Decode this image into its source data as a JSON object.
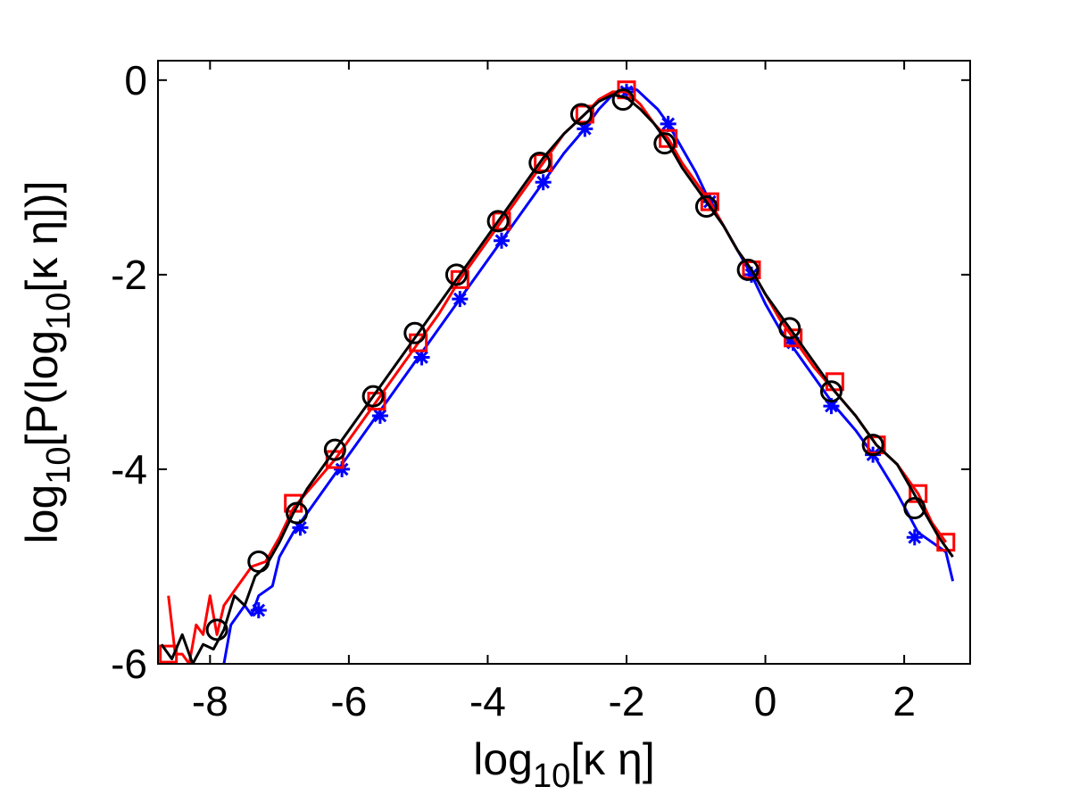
{
  "chart_data": {
    "type": "line",
    "title": "",
    "xlabel": {
      "base": "log",
      "sub": "10",
      "rest": "[κ η]"
    },
    "ylabel": {
      "base": "log",
      "sub1": "10",
      "mid": "[P(log",
      "sub2": "10",
      "rest": "[κ η])]"
    },
    "xlim": [
      -8.75,
      2.95
    ],
    "ylim": [
      -6,
      0.2
    ],
    "xticks": [
      -8,
      -6,
      -4,
      -2,
      0,
      2
    ],
    "xtick_labels": [
      "-8",
      "-6",
      "-4",
      "-2",
      "0",
      "2"
    ],
    "yticks": [
      -6,
      -4,
      -2,
      0
    ],
    "ytick_labels": [
      "-6",
      "-4",
      "-2",
      "0"
    ],
    "grid": false,
    "series": [
      {
        "color": "#0000ff",
        "marker": "asterisk",
        "x": [
          -7.8,
          -7.7,
          -7.5,
          -7.4,
          -7.3,
          -7.1,
          -7.0,
          -6.8,
          -6.5,
          -6.2,
          -5.9,
          -5.6,
          -5.3,
          -5.0,
          -4.7,
          -4.4,
          -4.1,
          -3.8,
          -3.5,
          -3.2,
          -2.9,
          -2.6,
          -2.4,
          -2.2,
          -2.0,
          -1.85,
          -1.7,
          -1.55,
          -1.4,
          -1.2,
          -1.0,
          -0.8,
          -0.6,
          -0.4,
          -0.2,
          0.0,
          0.2,
          0.4,
          0.7,
          1.0,
          1.3,
          1.6,
          1.9,
          2.2,
          2.4,
          2.6,
          2.7
        ],
        "y": [
          -6.0,
          -5.6,
          -5.4,
          -5.5,
          -5.3,
          -5.2,
          -4.9,
          -4.65,
          -4.35,
          -4.05,
          -3.75,
          -3.45,
          -3.15,
          -2.85,
          -2.55,
          -2.25,
          -1.95,
          -1.65,
          -1.35,
          -1.05,
          -0.75,
          -0.5,
          -0.3,
          -0.15,
          -0.08,
          -0.1,
          -0.2,
          -0.3,
          -0.45,
          -0.7,
          -0.95,
          -1.25,
          -1.5,
          -1.75,
          -2.0,
          -2.3,
          -2.55,
          -2.75,
          -3.05,
          -3.35,
          -3.6,
          -3.9,
          -4.25,
          -4.65,
          -4.75,
          -4.85,
          -5.15
        ],
        "marker_x": [
          -7.3,
          -6.7,
          -6.1,
          -5.55,
          -4.95,
          -4.4,
          -3.8,
          -3.2,
          -2.6,
          -2.0,
          -1.4,
          -0.8,
          -0.2,
          0.4,
          0.95,
          1.55,
          2.15
        ],
        "marker_y": [
          -5.45,
          -4.6,
          -4.0,
          -3.45,
          -2.85,
          -2.25,
          -1.65,
          -1.05,
          -0.5,
          -0.12,
          -0.45,
          -1.25,
          -2.0,
          -2.7,
          -3.35,
          -3.85,
          -4.7
        ]
      },
      {
        "color": "#ff0000",
        "marker": "square",
        "x": [
          -8.6,
          -8.5,
          -8.4,
          -8.3,
          -8.2,
          -8.1,
          -8.0,
          -7.9,
          -7.8,
          -7.6,
          -7.4,
          -7.2,
          -7.0,
          -6.8,
          -6.5,
          -6.2,
          -5.9,
          -5.6,
          -5.3,
          -5.0,
          -4.7,
          -4.4,
          -4.1,
          -3.8,
          -3.5,
          -3.2,
          -2.9,
          -2.6,
          -2.4,
          -2.2,
          -2.0,
          -1.8,
          -1.6,
          -1.4,
          -1.2,
          -1.0,
          -0.8,
          -0.6,
          -0.4,
          -0.2,
          0.0,
          0.2,
          0.4,
          0.7,
          1.0,
          1.3,
          1.6,
          1.9,
          2.2,
          2.4,
          2.6
        ],
        "y": [
          -5.3,
          -5.9,
          -5.9,
          -6.0,
          -5.6,
          -5.7,
          -5.3,
          -5.7,
          -5.4,
          -5.2,
          -5.0,
          -4.95,
          -4.7,
          -4.4,
          -4.15,
          -3.9,
          -3.6,
          -3.3,
          -3.0,
          -2.7,
          -2.4,
          -2.05,
          -1.75,
          -1.45,
          -1.15,
          -0.85,
          -0.55,
          -0.35,
          -0.2,
          -0.12,
          -0.12,
          -0.25,
          -0.45,
          -0.6,
          -0.85,
          -1.05,
          -1.25,
          -1.5,
          -1.75,
          -1.95,
          -2.2,
          -2.45,
          -2.65,
          -2.95,
          -3.2,
          -3.45,
          -3.75,
          -3.95,
          -4.25,
          -4.55,
          -4.75
        ],
        "marker_x": [
          -8.6,
          -6.8,
          -6.2,
          -5.6,
          -5.0,
          -4.4,
          -3.8,
          -3.2,
          -2.6,
          -2.0,
          -1.4,
          -0.8,
          -0.2,
          0.4,
          1.0,
          1.6,
          2.2,
          2.6
        ],
        "marker_y": [
          -5.9,
          -4.35,
          -3.9,
          -3.3,
          -2.7,
          -2.05,
          -1.45,
          -0.85,
          -0.35,
          -0.1,
          -0.6,
          -1.25,
          -1.95,
          -2.65,
          -3.1,
          -3.75,
          -4.25,
          -4.75
        ]
      },
      {
        "color": "#000000",
        "marker": "circle",
        "x": [
          -8.7,
          -8.55,
          -8.4,
          -8.25,
          -8.1,
          -7.95,
          -7.8,
          -7.65,
          -7.5,
          -7.35,
          -7.2,
          -7.0,
          -6.8,
          -6.6,
          -6.4,
          -6.2,
          -5.9,
          -5.6,
          -5.3,
          -5.0,
          -4.7,
          -4.4,
          -4.1,
          -3.8,
          -3.5,
          -3.2,
          -2.9,
          -2.6,
          -2.4,
          -2.2,
          -2.0,
          -1.8,
          -1.6,
          -1.4,
          -1.2,
          -1.0,
          -0.8,
          -0.6,
          -0.4,
          -0.2,
          0.0,
          0.2,
          0.4,
          0.7,
          1.0,
          1.3,
          1.6,
          1.9,
          2.1,
          2.3,
          2.5,
          2.7
        ],
        "y": [
          -5.8,
          -5.95,
          -5.7,
          -6.0,
          -5.8,
          -5.85,
          -5.65,
          -5.3,
          -5.4,
          -5.1,
          -5.0,
          -4.75,
          -4.45,
          -4.2,
          -4.0,
          -3.8,
          -3.5,
          -3.2,
          -2.9,
          -2.6,
          -2.3,
          -2.0,
          -1.7,
          -1.4,
          -1.1,
          -0.8,
          -0.55,
          -0.35,
          -0.22,
          -0.15,
          -0.18,
          -0.3,
          -0.45,
          -0.65,
          -0.9,
          -1.1,
          -1.3,
          -1.5,
          -1.75,
          -1.95,
          -2.2,
          -2.4,
          -2.6,
          -2.9,
          -3.2,
          -3.45,
          -3.75,
          -3.95,
          -4.2,
          -4.45,
          -4.7,
          -4.9
        ],
        "marker_x": [
          -7.9,
          -7.3,
          -6.75,
          -6.2,
          -5.65,
          -5.05,
          -4.45,
          -3.85,
          -3.25,
          -2.65,
          -2.05,
          -1.45,
          -0.85,
          -0.25,
          0.35,
          0.95,
          1.55,
          2.15
        ],
        "marker_y": [
          -5.65,
          -4.95,
          -4.45,
          -3.8,
          -3.25,
          -2.6,
          -2.0,
          -1.45,
          -0.85,
          -0.35,
          -0.2,
          -0.65,
          -1.3,
          -1.95,
          -2.55,
          -3.2,
          -3.75,
          -4.4
        ]
      }
    ]
  }
}
